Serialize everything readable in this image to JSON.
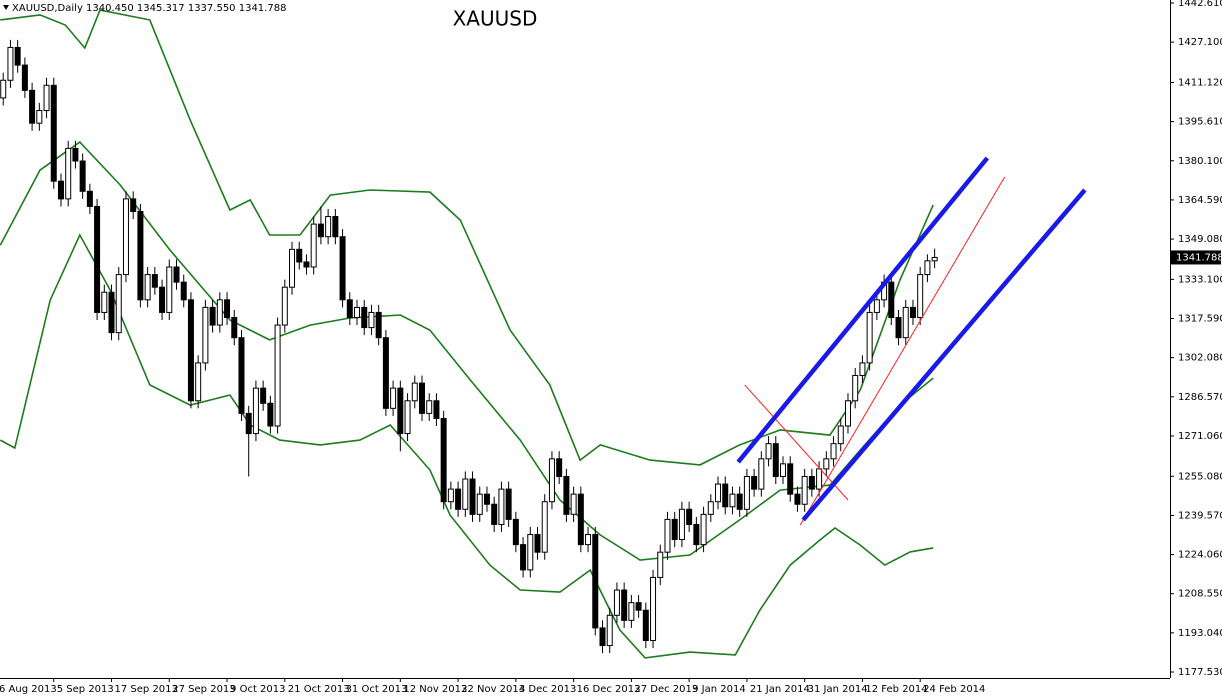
{
  "chart_data": {
    "type": "candlestick",
    "title": "XAUUSD",
    "header": "XAUUSD,Daily 1340.450 1345.317 1337.550 1341.788",
    "price_label": "1341.788",
    "xlim": [
      -0.446,
      161.6
    ],
    "ylim": [
      1175.15,
      1443.8
    ],
    "xticks": [
      {
        "value": -1,
        "label": "6 Aug 2013"
      },
      {
        "value": 7,
        "label": "5 Sep 2013"
      },
      {
        "value": 15,
        "label": "17 Sep 2013"
      },
      {
        "value": 23,
        "label": "27 Sep 2013"
      },
      {
        "value": 31,
        "label": "9 Oct 2013"
      },
      {
        "value": 39,
        "label": "21 Oct 2013"
      },
      {
        "value": 47,
        "label": "31 Oct 2013"
      },
      {
        "value": 55,
        "label": "12 Nov 2013"
      },
      {
        "value": 63,
        "label": "22 Nov 2013"
      },
      {
        "value": 71,
        "label": "4 Dec 2013"
      },
      {
        "value": 79,
        "label": "16 Dec 2013"
      },
      {
        "value": 87,
        "label": "27 Dec 2013"
      },
      {
        "value": 95,
        "label": "9 Jan 2014"
      },
      {
        "value": 103,
        "label": "21 Jan 2014"
      },
      {
        "value": 111,
        "label": "31 Jan 2014"
      },
      {
        "value": 119,
        "label": "12 Feb 2014"
      },
      {
        "value": 127,
        "label": "24 Feb 2014"
      }
    ],
    "yticks": [
      {
        "value": 1442.61,
        "label": "1442.610"
      },
      {
        "value": 1427.1,
        "label": "1427.100"
      },
      {
        "value": 1411.12,
        "label": "1411.120"
      },
      {
        "value": 1395.61,
        "label": "1395.610"
      },
      {
        "value": 1380.1,
        "label": "1380.100"
      },
      {
        "value": 1364.59,
        "label": "1364.590"
      },
      {
        "value": 1349.08,
        "label": "1349.080"
      },
      {
        "value": 1333.1,
        "label": "1333.100"
      },
      {
        "value": 1317.59,
        "label": "1317.590"
      },
      {
        "value": 1302.08,
        "label": "1302.080"
      },
      {
        "value": 1286.57,
        "label": "1286.570"
      },
      {
        "value": 1271.06,
        "label": "1271.060"
      },
      {
        "value": 1255.08,
        "label": "1255.080"
      },
      {
        "value": 1239.57,
        "label": "1239.570"
      },
      {
        "value": 1224.06,
        "label": "1224.060"
      },
      {
        "value": 1208.55,
        "label": "1208.550"
      },
      {
        "value": 1193.04,
        "label": "1193.040"
      },
      {
        "value": 1177.53,
        "label": "1177.530"
      }
    ],
    "color": "#000000",
    "candles": [
      [
        1405,
        1415,
        1402,
        1412
      ],
      [
        1412,
        1428,
        1409,
        1425
      ],
      [
        1425,
        1428,
        1415,
        1418
      ],
      [
        1418,
        1421,
        1405,
        1408
      ],
      [
        1408,
        1411,
        1392,
        1395
      ],
      [
        1395,
        1403,
        1392,
        1400
      ],
      [
        1400,
        1413,
        1397,
        1410
      ],
      [
        1410,
        1413,
        1369,
        1372
      ],
      [
        1372,
        1375,
        1362,
        1365
      ],
      [
        1365,
        1388,
        1362,
        1385
      ],
      [
        1385,
        1388,
        1377,
        1380
      ],
      [
        1380,
        1383,
        1365,
        1368
      ],
      [
        1368,
        1371,
        1359,
        1362
      ],
      [
        1362,
        1365,
        1317,
        1320
      ],
      [
        1320,
        1331,
        1317,
        1328
      ],
      [
        1328,
        1331,
        1309,
        1312
      ],
      [
        1312,
        1338,
        1309,
        1335
      ],
      [
        1335,
        1368,
        1332,
        1365
      ],
      [
        1365,
        1368,
        1357,
        1360
      ],
      [
        1360,
        1363,
        1322,
        1325
      ],
      [
        1325,
        1338,
        1322,
        1335
      ],
      [
        1335,
        1338,
        1327,
        1330
      ],
      [
        1330,
        1333,
        1317,
        1320
      ],
      [
        1320,
        1341,
        1317,
        1338
      ],
      [
        1338,
        1341,
        1329,
        1332
      ],
      [
        1332,
        1335,
        1322,
        1325
      ],
      [
        1325,
        1328,
        1282,
        1285
      ],
      [
        1285,
        1303,
        1282,
        1300
      ],
      [
        1300,
        1325,
        1297,
        1322
      ],
      [
        1322,
        1325,
        1312,
        1315
      ],
      [
        1315,
        1328,
        1312,
        1325
      ],
      [
        1325,
        1328,
        1315,
        1318
      ],
      [
        1318,
        1321,
        1307,
        1310
      ],
      [
        1310,
        1313,
        1277,
        1280
      ],
      [
        1280,
        1283,
        1255,
        1272
      ],
      [
        1272,
        1293,
        1269,
        1290
      ],
      [
        1290,
        1293,
        1281,
        1284
      ],
      [
        1284,
        1287,
        1272,
        1275
      ],
      [
        1275,
        1318,
        1272,
        1315
      ],
      [
        1315,
        1333,
        1312,
        1330
      ],
      [
        1330,
        1348,
        1327,
        1345
      ],
      [
        1345,
        1348,
        1337,
        1340
      ],
      [
        1340,
        1343,
        1335,
        1338
      ],
      [
        1338,
        1358,
        1335,
        1355
      ],
      [
        1355,
        1362,
        1347,
        1350
      ],
      [
        1350,
        1361,
        1347,
        1358
      ],
      [
        1358,
        1361,
        1347,
        1350
      ],
      [
        1350,
        1353,
        1322,
        1325
      ],
      [
        1325,
        1328,
        1315,
        1318
      ],
      [
        1318,
        1325,
        1315,
        1322
      ],
      [
        1322,
        1325,
        1311,
        1314
      ],
      [
        1314,
        1323,
        1311,
        1320
      ],
      [
        1320,
        1323,
        1307,
        1310
      ],
      [
        1310,
        1313,
        1279,
        1282
      ],
      [
        1282,
        1293,
        1279,
        1290
      ],
      [
        1290,
        1293,
        1265,
        1272
      ],
      [
        1272,
        1288,
        1269,
        1285
      ],
      [
        1285,
        1295,
        1282,
        1292
      ],
      [
        1292,
        1295,
        1277,
        1280
      ],
      [
        1280,
        1288,
        1277,
        1285
      ],
      [
        1285,
        1288,
        1275,
        1278
      ],
      [
        1278,
        1281,
        1242,
        1245
      ],
      [
        1245,
        1253,
        1242,
        1250
      ],
      [
        1250,
        1253,
        1239,
        1242
      ],
      [
        1242,
        1257,
        1239,
        1254
      ],
      [
        1254,
        1257,
        1237,
        1240
      ],
      [
        1240,
        1251,
        1237,
        1248
      ],
      [
        1248,
        1251,
        1241,
        1244
      ],
      [
        1244,
        1247,
        1233,
        1236
      ],
      [
        1236,
        1253,
        1233,
        1250
      ],
      [
        1250,
        1253,
        1235,
        1238
      ],
      [
        1238,
        1241,
        1225,
        1228
      ],
      [
        1228,
        1231,
        1215,
        1218
      ],
      [
        1218,
        1235,
        1215,
        1232
      ],
      [
        1232,
        1235,
        1222,
        1225
      ],
      [
        1225,
        1248,
        1222,
        1245
      ],
      [
        1245,
        1265,
        1242,
        1262
      ],
      [
        1262,
        1265,
        1252,
        1255
      ],
      [
        1255,
        1258,
        1237,
        1240
      ],
      [
        1240,
        1251,
        1237,
        1248
      ],
      [
        1248,
        1251,
        1225,
        1228
      ],
      [
        1228,
        1235,
        1225,
        1232
      ],
      [
        1232,
        1235,
        1192,
        1195
      ],
      [
        1195,
        1198,
        1185,
        1188
      ],
      [
        1188,
        1203,
        1185,
        1200
      ],
      [
        1200,
        1213,
        1197,
        1210
      ],
      [
        1210,
        1213,
        1195,
        1198
      ],
      [
        1198,
        1208,
        1195,
        1205
      ],
      [
        1205,
        1208,
        1199,
        1202
      ],
      [
        1202,
        1205,
        1187,
        1190
      ],
      [
        1190,
        1218,
        1187,
        1215
      ],
      [
        1215,
        1228,
        1212,
        1225
      ],
      [
        1225,
        1241,
        1222,
        1238
      ],
      [
        1238,
        1241,
        1227,
        1230
      ],
      [
        1230,
        1245,
        1227,
        1242
      ],
      [
        1242,
        1245,
        1233,
        1236
      ],
      [
        1236,
        1239,
        1225,
        1228
      ],
      [
        1228,
        1243,
        1225,
        1240
      ],
      [
        1240,
        1248,
        1237,
        1245
      ],
      [
        1245,
        1255,
        1242,
        1252
      ],
      [
        1252,
        1255,
        1240,
        1243
      ],
      [
        1243,
        1251,
        1240,
        1248
      ],
      [
        1248,
        1251,
        1239,
        1242
      ],
      [
        1242,
        1258,
        1239,
        1255
      ],
      [
        1255,
        1258,
        1247,
        1250
      ],
      [
        1250,
        1265,
        1247,
        1262
      ],
      [
        1262,
        1271,
        1259,
        1268
      ],
      [
        1268,
        1271,
        1252,
        1255
      ],
      [
        1255,
        1263,
        1252,
        1260
      ],
      [
        1260,
        1263,
        1245,
        1248
      ],
      [
        1248,
        1251,
        1241,
        1244
      ],
      [
        1244,
        1258,
        1241,
        1255
      ],
      [
        1255,
        1258,
        1247,
        1250
      ],
      [
        1250,
        1261,
        1247,
        1258
      ],
      [
        1258,
        1265,
        1255,
        1262
      ],
      [
        1262,
        1271,
        1259,
        1268
      ],
      [
        1268,
        1278,
        1265,
        1275
      ],
      [
        1275,
        1288,
        1272,
        1285
      ],
      [
        1285,
        1298,
        1282,
        1295
      ],
      [
        1295,
        1303,
        1292,
        1300
      ],
      [
        1300,
        1323,
        1297,
        1320
      ],
      [
        1320,
        1328,
        1317,
        1325
      ],
      [
        1325,
        1335,
        1322,
        1332
      ],
      [
        1332,
        1335,
        1315,
        1318
      ],
      [
        1318,
        1321,
        1307,
        1310
      ],
      [
        1310,
        1325,
        1307,
        1322
      ],
      [
        1322,
        1325,
        1315,
        1318
      ],
      [
        1318,
        1338,
        1315,
        1335
      ],
      [
        1335,
        1343,
        1332,
        1340.45
      ],
      [
        1340.45,
        1345.317,
        1337.55,
        1341.788
      ]
    ],
    "bands": [
      {
        "color": "#1e7b1e",
        "x": [
          -0.4,
          5.1,
          8.6,
          11.3,
          13.4,
          20.3,
          25.9,
          31.4,
          34.2,
          36.9,
          41.1,
          45.3,
          50.8,
          59.1,
          63.3,
          70.2,
          75.7,
          79.9,
          82.7,
          89.6,
          96.5,
          102.0,
          107.6,
          114.5,
          118.7,
          124.2,
          128.8
        ],
        "values": [
          1435.9,
          1437.9,
          1433.9,
          1424.8,
          1439.8,
          1435.9,
          1396.2,
          1360.6,
          1364.6,
          1350.7,
          1350.7,
          1366.5,
          1368.5,
          1367.7,
          1356.6,
          1313.0,
          1291.3,
          1261.5,
          1267.5,
          1261.5,
          1259.6,
          1267.5,
          1273.4,
          1271.4,
          1289.3,
          1332.9,
          1362.6
        ]
      },
      {
        "color": "#1e7b1e",
        "x": [
          -0.4,
          5.1,
          10.6,
          16.2,
          23.1,
          31.4,
          36.9,
          42.5,
          48.0,
          55.0,
          59.1,
          64.7,
          71.6,
          77.1,
          82.7,
          88.2,
          95.1,
          102.0,
          107.6,
          114.5,
          118.7,
          124.2,
          128.8
        ],
        "values": [
          1346.7,
          1376.4,
          1387.5,
          1370.5,
          1344.7,
          1317.0,
          1309.1,
          1315.0,
          1317.8,
          1319.0,
          1313.0,
          1293.2,
          1269.4,
          1245.7,
          1231.8,
          1221.9,
          1223.9,
          1237.8,
          1249.6,
          1251.6,
          1265.5,
          1283.3,
          1294.0
        ]
      },
      {
        "color": "#1e7b1e",
        "x": [
          -0.4,
          1.6,
          6.5,
          10.6,
          14.8,
          20.3,
          25.9,
          31.4,
          34.2,
          38.3,
          43.9,
          49.4,
          53.6,
          59.1,
          61.9,
          67.4,
          71.6,
          77.1,
          81.3,
          85.4,
          88.9,
          95.1,
          101.4,
          104.8,
          109.0,
          113.1,
          115.2,
          118.7,
          122.1,
          125.6,
          128.8
        ],
        "values": [
          1269.4,
          1266.3,
          1324.9,
          1350.7,
          1328.9,
          1291.3,
          1283.3,
          1287.3,
          1275.4,
          1269.4,
          1267.5,
          1269.4,
          1275.4,
          1257.6,
          1239.7,
          1219.9,
          1210.0,
          1209.2,
          1217.9,
          1194.2,
          1183.1,
          1185.4,
          1184.3,
          1202.1,
          1219.9,
          1229.8,
          1234.6,
          1227.8,
          1219.9,
          1225.1,
          1226.7
        ]
      }
    ],
    "channel_lines": {
      "color": "#1a1ae8",
      "lines": [
        {
          "x": [
            101.8,
            136.3
          ],
          "values": [
            1260.7,
            1381.2
          ]
        },
        {
          "x": [
            110.8,
            149.8
          ],
          "values": [
            1237.8,
            1368.5
          ]
        }
      ]
    },
    "guide_lines": {
      "color": "#ff2020",
      "lines": [
        {
          "x": [
            110.4,
            138.7
          ],
          "values": [
            1235.8,
            1373.7
          ]
        },
        {
          "x": [
            102.7,
            117.0
          ],
          "values": [
            1291.3,
            1245.7
          ]
        }
      ]
    }
  }
}
